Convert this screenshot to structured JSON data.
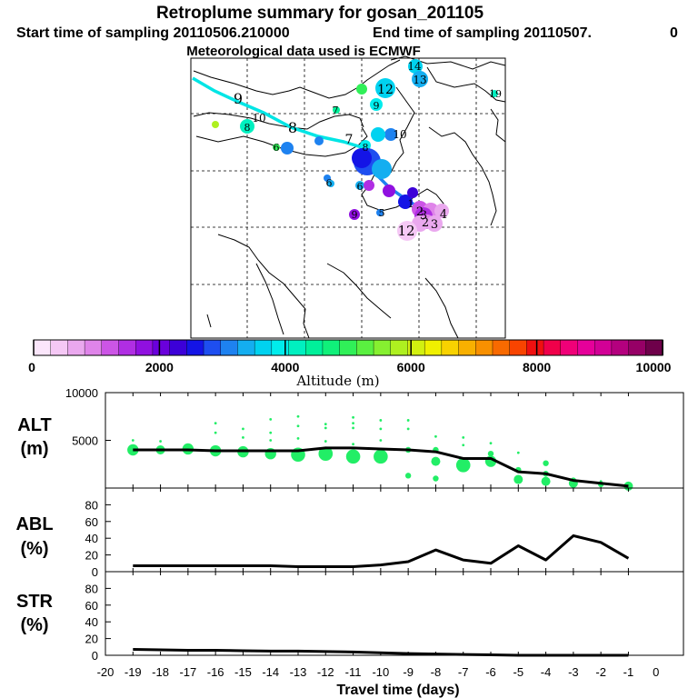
{
  "header": {
    "title": "Retroplume summary for gosan_201105",
    "start_label": "Start time of sampling 20110506.210000",
    "end_label": "End time of sampling 20110507.",
    "end_suffix": "0",
    "met_label": "Meteorological data used is ECMWF"
  },
  "map": {
    "plume_labels": [
      "9",
      "10",
      "8",
      "7",
      "6",
      "7",
      "8",
      "9",
      "12",
      "13",
      "14",
      "15",
      "19",
      "9",
      "10",
      "7",
      "8",
      "6",
      "5",
      "6",
      "3",
      "4",
      "2",
      "1",
      "3",
      "2",
      "12"
    ],
    "plume_colors": {
      "upper": "#00e5e5",
      "lower": "#1496e6"
    }
  },
  "colorbar": {
    "min": 0,
    "max": 10000,
    "tick_labels": [
      "0",
      "2000",
      "4000",
      "6000",
      "8000",
      "10000"
    ],
    "axis_label": "Altitude (m)",
    "colors": [
      "#fbe6fb",
      "#f5c8f5",
      "#eaa8ee",
      "#df84e9",
      "#cc55e6",
      "#b02ee3",
      "#9010e0",
      "#6a00dc",
      "#3c00d8",
      "#1414e6",
      "#1e4ef0",
      "#1e82f0",
      "#14aef0",
      "#00d2f0",
      "#00ecec",
      "#00f0c0",
      "#00f09a",
      "#10f07a",
      "#30f058",
      "#5af040",
      "#86f030",
      "#aef020",
      "#d2f010",
      "#f0f000",
      "#f8d200",
      "#f8b000",
      "#f89000",
      "#f86a00",
      "#f84400",
      "#f01010",
      "#f0004a",
      "#f00078",
      "#e6009a",
      "#d20096",
      "#b4007e",
      "#960066",
      "#6e004a"
    ]
  },
  "chart_data": [
    {
      "type": "line",
      "panel": "ALT",
      "ylabel_line1": "ALT",
      "ylabel_line2": "(m)",
      "ylim": [
        0,
        10000
      ],
      "y_ticks": [
        "10000",
        "5000"
      ],
      "x": [
        -19,
        -18,
        -17,
        -16,
        -15,
        -14,
        -13,
        -12,
        -11,
        -10,
        -9,
        -8,
        -7,
        -6,
        -5,
        -4,
        -3,
        -2,
        -1
      ],
      "series": [
        {
          "name": "mean altitude",
          "values": [
            4000,
            4000,
            4000,
            3900,
            3900,
            3900,
            3900,
            4200,
            4200,
            4100,
            4000,
            3800,
            3100,
            3100,
            1700,
            1500,
            800,
            500,
            200
          ]
        }
      ],
      "clusters": [
        {
          "x": -19,
          "points": [
            [
              4000,
              4
            ],
            [
              5000,
              1
            ]
          ]
        },
        {
          "x": -18,
          "points": [
            [
              4000,
              3
            ],
            [
              4900,
              1
            ]
          ]
        },
        {
          "x": -17,
          "points": [
            [
              4100,
              4
            ],
            [
              4500,
              1
            ]
          ]
        },
        {
          "x": -16,
          "points": [
            [
              3900,
              4
            ],
            [
              5800,
              1
            ],
            [
              6800,
              1
            ]
          ]
        },
        {
          "x": -15,
          "points": [
            [
              3800,
              4
            ],
            [
              5300,
              1
            ],
            [
              6200,
              1
            ]
          ]
        },
        {
          "x": -14,
          "points": [
            [
              3600,
              4
            ],
            [
              5000,
              1
            ],
            [
              5800,
              1
            ],
            [
              7200,
              1
            ]
          ]
        },
        {
          "x": -13,
          "points": [
            [
              3500,
              5
            ],
            [
              5200,
              1
            ],
            [
              6500,
              1
            ],
            [
              7500,
              1
            ]
          ]
        },
        {
          "x": -12,
          "points": [
            [
              3600,
              5
            ],
            [
              4900,
              1
            ],
            [
              6300,
              1
            ],
            [
              6700,
              1
            ]
          ]
        },
        {
          "x": -11,
          "points": [
            [
              3300,
              5
            ],
            [
              4600,
              1
            ],
            [
              6300,
              1
            ],
            [
              6800,
              1
            ],
            [
              7400,
              1
            ]
          ]
        },
        {
          "x": -10,
          "points": [
            [
              3300,
              5
            ],
            [
              5000,
              1
            ],
            [
              6200,
              1
            ],
            [
              7100,
              1
            ]
          ]
        },
        {
          "x": -9,
          "points": [
            [
              1300,
              2
            ],
            [
              4000,
              2
            ],
            [
              6200,
              1
            ],
            [
              7100,
              1
            ]
          ]
        },
        {
          "x": -8,
          "points": [
            [
              1000,
              2
            ],
            [
              2800,
              3
            ],
            [
              4000,
              2
            ],
            [
              5400,
              1
            ]
          ]
        },
        {
          "x": -7,
          "points": [
            [
              2400,
              5
            ],
            [
              4500,
              1
            ],
            [
              5300,
              1
            ]
          ]
        },
        {
          "x": -6,
          "points": [
            [
              2800,
              4
            ],
            [
              3600,
              2
            ],
            [
              4700,
              1
            ]
          ]
        },
        {
          "x": -5,
          "points": [
            [
              900,
              3
            ],
            [
              1900,
              2
            ],
            [
              3700,
              1
            ]
          ]
        },
        {
          "x": -4,
          "points": [
            [
              700,
              3
            ],
            [
              1500,
              2
            ],
            [
              2600,
              2
            ]
          ]
        },
        {
          "x": -3,
          "points": [
            [
              500,
              3
            ],
            [
              800,
              2
            ]
          ]
        },
        {
          "x": -2,
          "points": [
            [
              400,
              2
            ],
            [
              700,
              1
            ]
          ]
        },
        {
          "x": -1,
          "points": [
            [
              200,
              3
            ]
          ]
        }
      ],
      "cluster_color": "#22ee66"
    },
    {
      "type": "line",
      "panel": "ABL",
      "ylabel_line1": "ABL",
      "ylabel_line2": "(%)",
      "ylim": [
        0,
        100
      ],
      "y_ticks": [
        "80",
        "60",
        "40",
        "20",
        "0"
      ],
      "x": [
        -19,
        -18,
        -17,
        -16,
        -15,
        -14,
        -13,
        -12,
        -11,
        -10,
        -9,
        -8,
        -7,
        -6,
        -5,
        -4,
        -3,
        -2,
        -1
      ],
      "series": [
        {
          "name": "ABL fraction",
          "values": [
            7,
            7,
            7,
            7,
            7,
            7,
            6,
            6,
            6,
            8,
            12,
            26,
            14,
            10,
            31,
            14,
            43,
            35,
            16
          ]
        }
      ]
    },
    {
      "type": "line",
      "panel": "STR",
      "ylabel_line1": "STR",
      "ylabel_line2": "(%)",
      "ylim": [
        0,
        100
      ],
      "y_ticks": [
        "80",
        "60",
        "40",
        "20",
        "0"
      ],
      "x": [
        -19,
        -18,
        -17,
        -16,
        -15,
        -14,
        -13,
        -12,
        -11,
        -10,
        -9,
        -8,
        -7,
        -6,
        -5,
        -4,
        -3,
        -2,
        -1
      ],
      "series": [
        {
          "name": "stratospheric fraction",
          "values": [
            7,
            6.5,
            6,
            6,
            5.5,
            5,
            5,
            4.5,
            4,
            3,
            2,
            1.5,
            1,
            0.5,
            0,
            0,
            0,
            0,
            0
          ]
        }
      ],
      "x_ticks": [
        "-20",
        "-19",
        "-18",
        "-17",
        "-16",
        "-15",
        "-14",
        "-13",
        "-12",
        "-11",
        "-10",
        "-9",
        "-8",
        "-7",
        "-6",
        "-5",
        "-4",
        "-3",
        "-2",
        "-1",
        "0"
      ],
      "xlabel": "Travel time (days)"
    }
  ]
}
